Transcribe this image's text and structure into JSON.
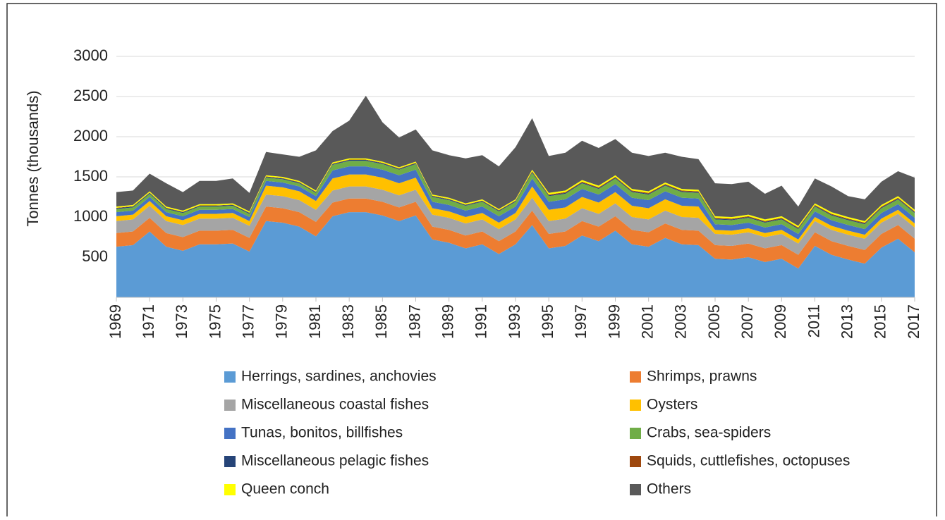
{
  "chart_data": {
    "type": "stacked_area",
    "y_label": "Tonnes (thousands)",
    "x": [
      1969,
      1970,
      1971,
      1972,
      1973,
      1974,
      1975,
      1976,
      1977,
      1978,
      1979,
      1980,
      1981,
      1982,
      1983,
      1984,
      1985,
      1986,
      1987,
      1988,
      1989,
      1990,
      1991,
      1992,
      1993,
      1994,
      1995,
      1996,
      1997,
      1998,
      1999,
      2000,
      2001,
      2002,
      2003,
      2004,
      2005,
      2006,
      2007,
      2008,
      2009,
      2010,
      2011,
      2012,
      2013,
      2014,
      2015,
      2016,
      2017
    ],
    "xlim": [
      1969,
      2017
    ],
    "xticks": [
      1969,
      1971,
      1973,
      1975,
      1977,
      1979,
      1981,
      1983,
      1985,
      1987,
      1989,
      1991,
      1993,
      1995,
      1997,
      1999,
      2001,
      2003,
      2005,
      2007,
      2009,
      2011,
      2013,
      2015,
      2017
    ],
    "ylim": [
      0,
      3000
    ],
    "yticks": [
      500,
      1000,
      1500,
      2000,
      2500,
      3000
    ],
    "grid": true,
    "series": [
      {
        "name": "Herrings, sardines, anchovies",
        "color": "#5b9bd5",
        "values": [
          630,
          650,
          820,
          630,
          580,
          660,
          660,
          670,
          570,
          950,
          930,
          880,
          760,
          1010,
          1060,
          1060,
          1020,
          950,
          1020,
          720,
          680,
          610,
          660,
          540,
          660,
          900,
          610,
          640,
          770,
          700,
          830,
          660,
          630,
          740,
          660,
          650,
          480,
          470,
          500,
          440,
          480,
          360,
          640,
          530,
          470,
          420,
          620,
          730,
          560
        ]
      },
      {
        "name": "Shrimps, prawns",
        "color": "#ed7d31",
        "values": [
          170,
          170,
          170,
          170,
          170,
          170,
          170,
          170,
          170,
          180,
          180,
          180,
          180,
          170,
          170,
          170,
          170,
          170,
          170,
          160,
          160,
          160,
          160,
          160,
          160,
          180,
          180,
          180,
          180,
          180,
          180,
          180,
          180,
          180,
          180,
          180,
          170,
          170,
          170,
          170,
          170,
          170,
          170,
          170,
          170,
          170,
          170,
          170,
          170
        ]
      },
      {
        "name": "Miscellaneous coastal fishes",
        "color": "#a5a5a5",
        "values": [
          150,
          150,
          150,
          150,
          150,
          150,
          150,
          150,
          150,
          150,
          150,
          150,
          150,
          150,
          150,
          150,
          150,
          150,
          150,
          150,
          150,
          150,
          150,
          150,
          150,
          160,
          160,
          160,
          160,
          160,
          160,
          160,
          160,
          160,
          160,
          160,
          140,
          140,
          140,
          140,
          140,
          140,
          140,
          140,
          140,
          140,
          140,
          140,
          140
        ]
      },
      {
        "name": "Oysters",
        "color": "#ffc000",
        "values": [
          60,
          60,
          60,
          60,
          60,
          60,
          60,
          60,
          60,
          110,
          110,
          110,
          110,
          150,
          150,
          150,
          150,
          150,
          150,
          80,
          80,
          80,
          80,
          80,
          80,
          140,
          140,
          140,
          140,
          140,
          140,
          140,
          140,
          140,
          140,
          140,
          50,
          50,
          50,
          50,
          50,
          50,
          50,
          50,
          50,
          50,
          50,
          50,
          50
        ]
      },
      {
        "name": "Tunas, bonitos, billfishes",
        "color": "#4472c4",
        "values": [
          50,
          50,
          50,
          50,
          50,
          50,
          50,
          50,
          50,
          60,
          60,
          60,
          60,
          100,
          100,
          100,
          100,
          100,
          100,
          80,
          80,
          80,
          80,
          80,
          80,
          100,
          100,
          100,
          100,
          100,
          100,
          100,
          100,
          100,
          100,
          100,
          70,
          70,
          70,
          70,
          70,
          70,
          70,
          70,
          70,
          70,
          70,
          70,
          70
        ]
      },
      {
        "name": "Crabs, sea-spiders",
        "color": "#70ad47",
        "values": [
          40,
          40,
          40,
          40,
          40,
          40,
          40,
          40,
          40,
          40,
          40,
          40,
          40,
          70,
          70,
          70,
          70,
          70,
          70,
          60,
          60,
          60,
          60,
          60,
          60,
          70,
          70,
          70,
          70,
          70,
          70,
          70,
          70,
          70,
          70,
          70,
          60,
          60,
          60,
          60,
          60,
          60,
          60,
          60,
          60,
          60,
          60,
          60,
          60
        ]
      },
      {
        "name": "Miscellaneous pelagic fishes",
        "color": "#264478",
        "values": [
          10,
          10,
          10,
          10,
          10,
          10,
          10,
          10,
          10,
          10,
          10,
          10,
          10,
          10,
          10,
          10,
          10,
          10,
          10,
          10,
          10,
          10,
          10,
          10,
          10,
          10,
          10,
          10,
          10,
          10,
          10,
          10,
          10,
          10,
          10,
          10,
          10,
          10,
          10,
          10,
          10,
          10,
          10,
          10,
          10,
          10,
          10,
          10,
          10
        ]
      },
      {
        "name": "Squids, cuttlefishes, octopuses",
        "color": "#9e480e",
        "values": [
          5,
          5,
          5,
          5,
          5,
          5,
          5,
          5,
          5,
          5,
          5,
          5,
          5,
          5,
          5,
          5,
          5,
          5,
          5,
          5,
          5,
          5,
          5,
          5,
          5,
          10,
          10,
          10,
          10,
          10,
          10,
          10,
          10,
          10,
          10,
          10,
          10,
          10,
          10,
          10,
          10,
          10,
          10,
          10,
          10,
          10,
          10,
          10,
          10
        ]
      },
      {
        "name": "Queen conch",
        "color": "#ffff00",
        "values": [
          15,
          15,
          15,
          15,
          15,
          15,
          15,
          15,
          15,
          15,
          15,
          15,
          15,
          15,
          15,
          15,
          15,
          15,
          15,
          15,
          15,
          15,
          15,
          15,
          15,
          20,
          20,
          20,
          20,
          20,
          20,
          20,
          20,
          20,
          20,
          20,
          20,
          20,
          20,
          20,
          20,
          20,
          20,
          20,
          20,
          20,
          20,
          20,
          20
        ]
      },
      {
        "name": "Others",
        "color": "#595959",
        "values": [
          180,
          180,
          220,
          290,
          230,
          290,
          290,
          310,
          230,
          290,
          280,
          300,
          500,
          390,
          470,
          780,
          490,
          370,
          400,
          550,
          530,
          560,
          550,
          530,
          650,
          640,
          460,
          470,
          490,
          470,
          450,
          450,
          440,
          370,
          400,
          380,
          410,
          410,
          410,
          320,
          380,
          240,
          310,
          320,
          260,
          270,
          290,
          310,
          400
        ]
      }
    ]
  }
}
